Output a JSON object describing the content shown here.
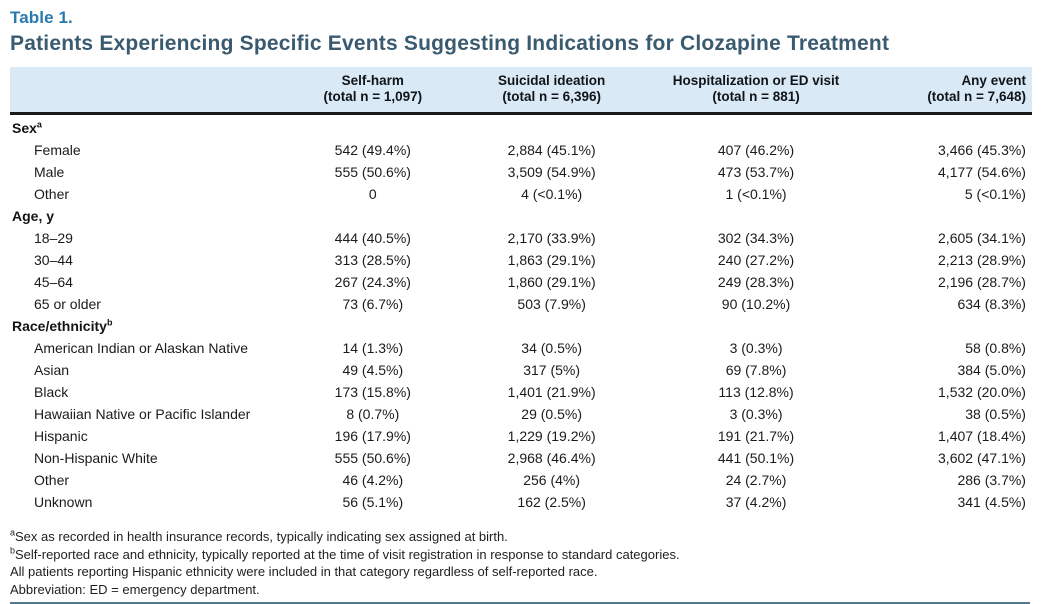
{
  "table_label": "Table 1.",
  "title": "Patients Experiencing Specific Events Suggesting Indications for Clozapine Treatment",
  "colors": {
    "table_label_blue": "#2879ae",
    "title_slate": "#3a5a70",
    "header_band_bg": "#d9eaf6",
    "heavy_rule": "#1a1a1a",
    "bottom_rule": "#51788f"
  },
  "columns": [
    {
      "line1": "Self-harm",
      "line2": "(total n = 1,097)"
    },
    {
      "line1": "Suicidal ideation",
      "line2": "(total n = 6,396)"
    },
    {
      "line1": "Hospitalization or ED visit",
      "line2": "(total n = 881)"
    },
    {
      "line1": "Any event",
      "line2": "(total n = 7,648)"
    }
  ],
  "sections": [
    {
      "header": "Sex",
      "header_sup": "a",
      "rows": [
        {
          "label": "Female",
          "values": [
            "542 (49.4%)",
            "2,884 (45.1%)",
            "407 (46.2%)",
            "3,466 (45.3%)"
          ]
        },
        {
          "label": "Male",
          "values": [
            "555 (50.6%)",
            "3,509 (54.9%)",
            "473 (53.7%)",
            "4,177 (54.6%)"
          ]
        },
        {
          "label": "Other",
          "values": [
            "0",
            "4 (<0.1%)",
            "1 (<0.1%)",
            "5 (<0.1%)"
          ]
        }
      ]
    },
    {
      "header": "Age, y",
      "header_sup": "",
      "rows": [
        {
          "label": "18–29",
          "values": [
            "444 (40.5%)",
            "2,170 (33.9%)",
            "302 (34.3%)",
            "2,605 (34.1%)"
          ]
        },
        {
          "label": "30–44",
          "values": [
            "313 (28.5%)",
            "1,863 (29.1%)",
            "240 (27.2%)",
            "2,213 (28.9%)"
          ]
        },
        {
          "label": "45–64",
          "values": [
            "267 (24.3%)",
            "1,860 (29.1%)",
            "249 (28.3%)",
            "2,196 (28.7%)"
          ]
        },
        {
          "label": "65 or older",
          "values": [
            "73 (6.7%)",
            "503 (7.9%)",
            "90 (10.2%)",
            "634 (8.3%)"
          ]
        }
      ]
    },
    {
      "header": "Race/ethnicity",
      "header_sup": "b",
      "rows": [
        {
          "label": "American Indian or Alaskan Native",
          "values": [
            "14 (1.3%)",
            "34 (0.5%)",
            "3 (0.3%)",
            "58 (0.8%)"
          ]
        },
        {
          "label": "Asian",
          "values": [
            "49 (4.5%)",
            "317 (5%)",
            "69 (7.8%)",
            "384 (5.0%)"
          ]
        },
        {
          "label": "Black",
          "values": [
            "173 (15.8%)",
            "1,401 (21.9%)",
            "113 (12.8%)",
            "1,532 (20.0%)"
          ]
        },
        {
          "label": "Hawaiian Native or Pacific Islander",
          "values": [
            "8 (0.7%)",
            "29 (0.5%)",
            "3 (0.3%)",
            "38 (0.5%)"
          ]
        },
        {
          "label": "Hispanic",
          "values": [
            "196 (17.9%)",
            "1,229 (19.2%)",
            "191 (21.7%)",
            "1,407 (18.4%)"
          ]
        },
        {
          "label": "Non-Hispanic White",
          "values": [
            "555 (50.6%)",
            "2,968 (46.4%)",
            "441 (50.1%)",
            "3,602 (47.1%)"
          ]
        },
        {
          "label": "Other",
          "values": [
            "46 (4.2%)",
            "256 (4%)",
            "24 (2.7%)",
            "286 (3.7%)"
          ]
        },
        {
          "label": "Unknown",
          "values": [
            "56 (5.1%)",
            "162 (2.5%)",
            "37 (4.2%)",
            "341 (4.5%)"
          ]
        }
      ]
    }
  ],
  "footnotes": [
    {
      "sup": "a",
      "text": "Sex as recorded in health insurance records, typically indicating sex assigned at birth."
    },
    {
      "sup": "b",
      "text": "Self-reported race and ethnicity, typically reported at the time of visit registration in response to standard categories."
    },
    {
      "sup": "",
      "text": "All patients reporting Hispanic ethnicity were included in that category regardless of self-reported race."
    },
    {
      "sup": "",
      "text": "Abbreviation: ED = emergency department."
    }
  ]
}
